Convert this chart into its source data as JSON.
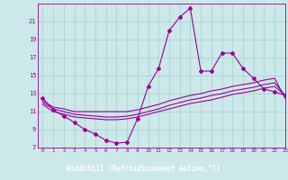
{
  "xlabel": "Windchill (Refroidissement éolien,°C)",
  "bg_color": "#cce8e8",
  "grid_color": "#aad4d4",
  "line_color": "#990099",
  "xlabel_bg": "#7b5fa0",
  "xlabel_fg": "#ffffff",
  "x_hours": [
    0,
    1,
    2,
    3,
    4,
    5,
    6,
    7,
    8,
    9,
    10,
    11,
    12,
    13,
    14,
    15,
    16,
    17,
    18,
    19,
    20,
    21,
    22,
    23
  ],
  "line1": [
    12.5,
    11.2,
    10.5,
    9.8,
    9.0,
    8.5,
    7.8,
    7.5,
    7.6,
    10.2,
    13.8,
    15.8,
    20.0,
    21.5,
    22.5,
    15.5,
    15.5,
    17.5,
    17.5,
    15.8,
    14.7,
    13.5,
    13.2,
    12.8
  ],
  "line2": [
    12.2,
    11.5,
    11.3,
    11.0,
    11.0,
    11.0,
    11.0,
    11.0,
    11.0,
    11.2,
    11.5,
    11.8,
    12.2,
    12.5,
    12.8,
    13.0,
    13.3,
    13.5,
    13.8,
    14.0,
    14.2,
    14.5,
    14.7,
    12.5
  ],
  "line3": [
    12.0,
    11.3,
    11.0,
    10.7,
    10.6,
    10.5,
    10.4,
    10.4,
    10.5,
    10.7,
    11.0,
    11.3,
    11.7,
    12.0,
    12.3,
    12.5,
    12.8,
    13.0,
    13.3,
    13.5,
    13.7,
    14.0,
    14.2,
    12.8
  ],
  "line4": [
    11.8,
    11.0,
    10.7,
    10.4,
    10.3,
    10.2,
    10.1,
    10.1,
    10.2,
    10.4,
    10.7,
    11.0,
    11.3,
    11.6,
    11.9,
    12.1,
    12.3,
    12.6,
    12.9,
    13.1,
    13.3,
    13.6,
    13.8,
    12.8
  ],
  "ylim": [
    7,
    23
  ],
  "yticks": [
    7,
    9,
    11,
    13,
    15,
    17,
    19,
    21
  ],
  "xlim": [
    -0.5,
    23
  ]
}
